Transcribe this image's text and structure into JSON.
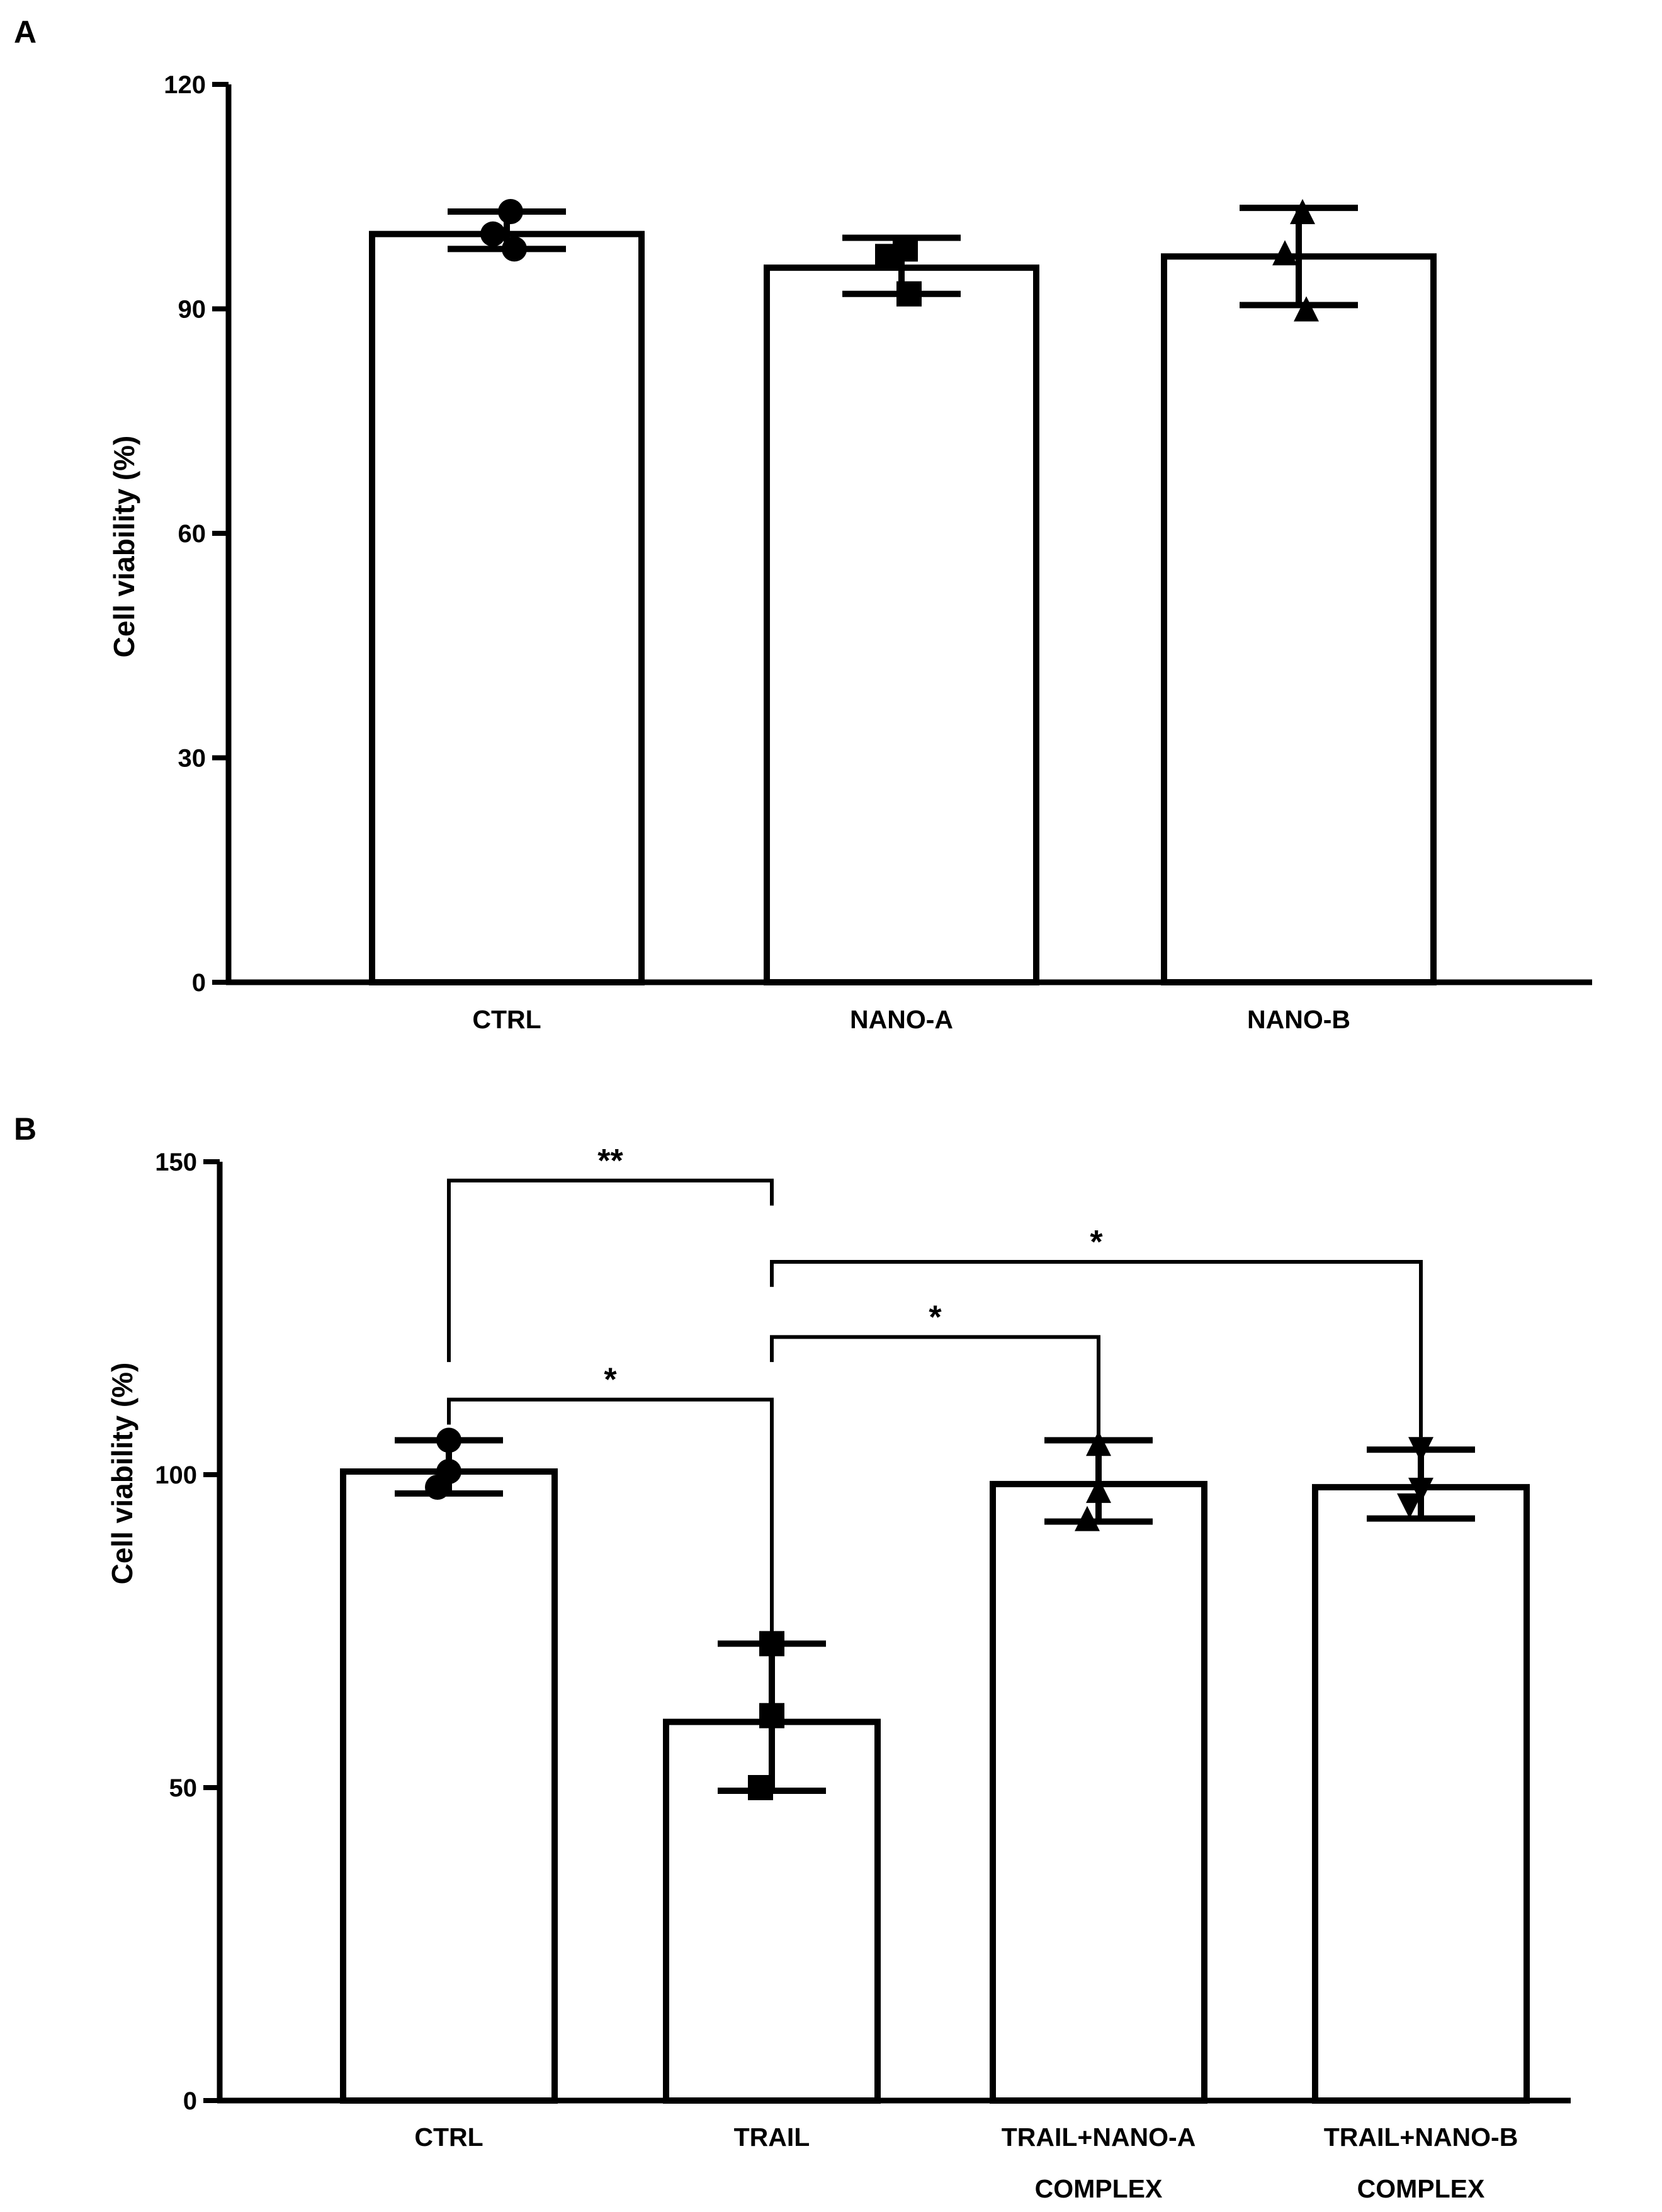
{
  "colors": {
    "ink": "#000000",
    "bar_fill": "#ffffff",
    "background": "#ffffff"
  },
  "chart_data": [
    {
      "panel": "A",
      "type": "bar",
      "title": "",
      "xlabel": "",
      "ylabel": "Cell viability (%)",
      "ylim": [
        0,
        120
      ],
      "yticks": [
        0,
        30,
        60,
        90,
        120
      ],
      "ytick_labels": [
        "0",
        "30",
        "60",
        "90",
        "120"
      ],
      "categories": [
        "CTRL",
        "NANO-A",
        "NANO-B"
      ],
      "category_labels": [
        [
          "CTRL"
        ],
        [
          "NANO-A"
        ],
        [
          "NANO-B"
        ]
      ],
      "values": [
        100,
        95.5,
        97
      ],
      "error": [
        [
          98,
          103
        ],
        [
          92,
          99.5
        ],
        [
          90.5,
          103.5
        ]
      ],
      "points": [
        [
          103,
          100,
          98
        ],
        [
          98,
          97,
          92
        ],
        [
          103,
          97.5,
          90
        ]
      ],
      "markers": [
        "circle",
        "square",
        "triangle-up"
      ],
      "significance": []
    },
    {
      "panel": "B",
      "type": "bar",
      "title": "",
      "xlabel": "",
      "ylabel": "Cell viability (%)",
      "ylim": [
        0,
        150
      ],
      "yticks": [
        0,
        50,
        100,
        150
      ],
      "ytick_labels": [
        "0",
        "50",
        "100",
        "150"
      ],
      "categories": [
        "CTRL",
        "TRAIL",
        "TRAIL+NANO-A COMPLEX",
        "TRAIL+NANO-B COMPLEX"
      ],
      "category_labels": [
        [
          "CTRL"
        ],
        [
          "TRAIL"
        ],
        [
          "TRAIL+NANO-A",
          "COMPLEX"
        ],
        [
          "TRAIL+NANO-B",
          "COMPLEX"
        ]
      ],
      "values": [
        100.5,
        60.5,
        98.5,
        98
      ],
      "error": [
        [
          97,
          105.5
        ],
        [
          49.5,
          73
        ],
        [
          92.5,
          105.5
        ],
        [
          93,
          104
        ]
      ],
      "points": [
        [
          105.5,
          100.5,
          98
        ],
        [
          73,
          61.5,
          50
        ],
        [
          105,
          97.5,
          93
        ],
        [
          104,
          97.5,
          95
        ]
      ],
      "markers": [
        "circle",
        "square",
        "triangle-up",
        "triangle-down"
      ],
      "significance": [
        {
          "from": 0,
          "to": 1,
          "label": "**",
          "y": 147,
          "left_drop": 118,
          "right_drop": 143
        },
        {
          "from": 1,
          "to": 3,
          "label": "*",
          "y": 134,
          "left_drop": 130,
          "right_drop": 106
        },
        {
          "from": 1,
          "to": 2,
          "label": "*",
          "y": 122,
          "left_drop": 118,
          "right_drop": 106
        },
        {
          "from": 0,
          "to": 1,
          "label": "*",
          "y": 112,
          "left_drop": 108,
          "right_drop": 74
        }
      ]
    }
  ]
}
